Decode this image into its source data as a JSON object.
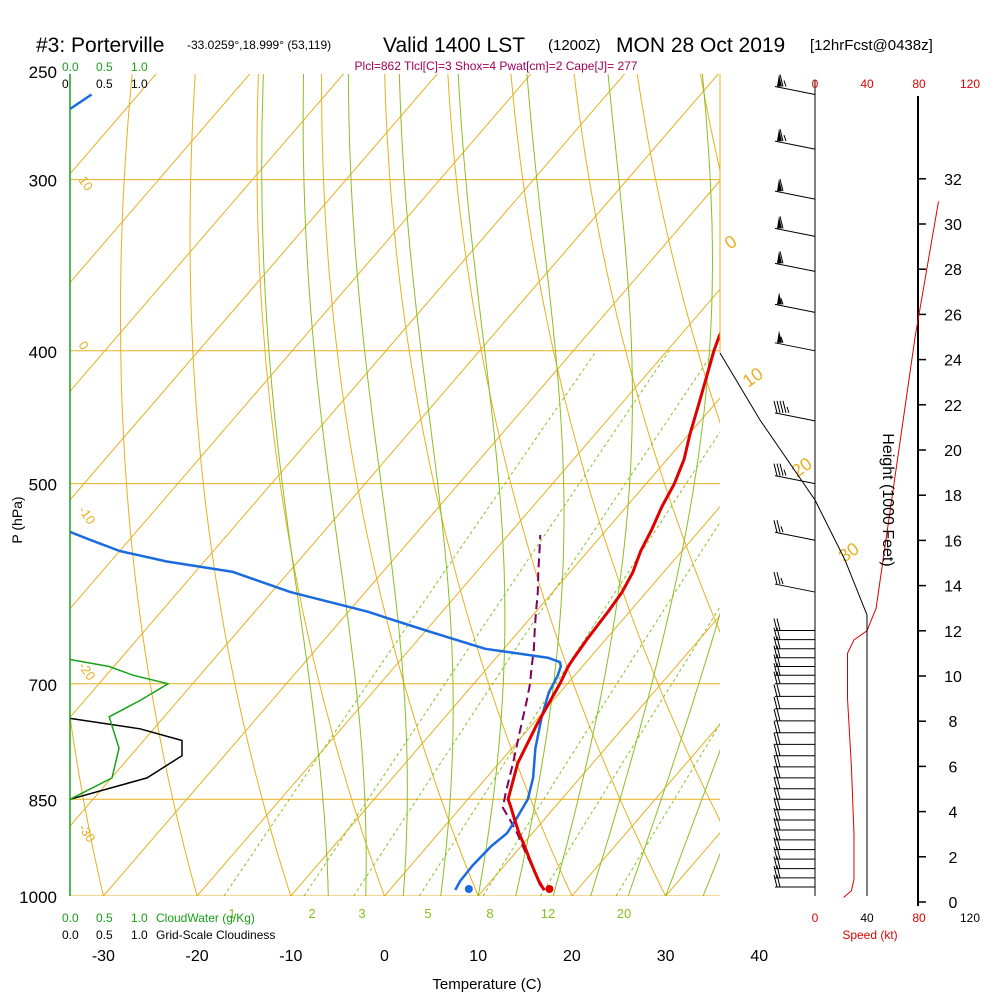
{
  "header": {
    "station": "#3: Porterville",
    "coords": "-33.0259°,18.999° (53,119)",
    "valid": "Valid 1400 LST",
    "zulu": "(1200Z)",
    "date": "MON 28 Oct 2019",
    "forecast": "[12hrFcst@0438z]",
    "indices": "Plcl=862 Tlcl[C]=3 Shox=4 Pwat[cm]=2 Cape[J]= 277"
  },
  "colors": {
    "isotherm": "#e8b020",
    "dry_adiabat": "#e8b020",
    "moist_adiabat": "#88c020",
    "mixing_ratio": "#88c020",
    "temperature": "#e00000",
    "dewpoint": "#1a6ae0",
    "parcel": "#800060",
    "cloudwater": "#18a018",
    "cloudiness": "#000000",
    "wind_speed": "#e00000"
  },
  "chart_data": {
    "type": "line",
    "title": "",
    "xlabel": "Temperature (C)",
    "ylabel": "P (hPa)",
    "y_scale": "log",
    "xlim": [
      -35,
      36
    ],
    "ylim": [
      1000,
      250
    ],
    "x_ticks": [
      -30,
      -20,
      -10,
      0,
      10,
      20,
      30,
      40
    ],
    "p_ticks": [
      250,
      300,
      400,
      500,
      700,
      850,
      1000
    ],
    "isotherms_every": 10,
    "dry_adiabat_labels": [
      "10",
      "0",
      "-10",
      "-20",
      "-30"
    ],
    "moist_adiabat_labels": [
      "0",
      "10",
      "20",
      "30"
    ],
    "mixing_ratio_labels": [
      "1",
      "2",
      "3",
      "5",
      "8",
      "12",
      "20"
    ],
    "series": [
      {
        "key": "temperature",
        "p": [
          990,
          980,
          960,
          940,
          920,
          900,
          880,
          860,
          850,
          800,
          750,
          700,
          680,
          670,
          650,
          620,
          600,
          580,
          560,
          540,
          520,
          500,
          480,
          460,
          440,
          420,
          400,
          390,
          380,
          370,
          360,
          350,
          340,
          330,
          320,
          310,
          300,
          290,
          280,
          270,
          260
        ],
        "x": [
          16.5,
          15.5,
          13.8,
          12.1,
          10.4,
          8.6,
          6.9,
          5.2,
          4.3,
          2.0,
          0.5,
          -0.8,
          -1.5,
          -1.7,
          -2.0,
          -2.3,
          -2.6,
          -3.3,
          -4.4,
          -5.2,
          -6.2,
          -7.0,
          -8.2,
          -9.9,
          -11.5,
          -13.2,
          -15.0,
          -15.8,
          -16.4,
          -16.9,
          -17.6,
          -18.6,
          -19.8,
          -21.0,
          -22.3,
          -23.6,
          -25.0,
          -26.6,
          -28.3,
          -30.0,
          -31.5
        ]
      },
      {
        "key": "dewpoint",
        "p": [
          990,
          975,
          950,
          920,
          900,
          880,
          860,
          850,
          820,
          780,
          740,
          710,
          700,
          690,
          680,
          675,
          670,
          660,
          640,
          620,
          600,
          580,
          570,
          560,
          550,
          540,
          520,
          500,
          460,
          420,
          380,
          360,
          340,
          320,
          300,
          290,
          280,
          270,
          260
        ],
        "x": [
          7.0,
          6.7,
          6.6,
          6.8,
          7.3,
          7.0,
          6.6,
          6.4,
          5.0,
          2.5,
          0.3,
          -1.2,
          -1.5,
          -1.8,
          -2.3,
          -2.8,
          -4.5,
          -12.0,
          -20.0,
          -28.0,
          -38.0,
          -46.0,
          -54.0,
          -60.0,
          -64.0,
          -68.0,
          -76.0,
          -84.0,
          -98.0,
          -110.0,
          -120.0,
          -122.0,
          -122.5,
          -121.0,
          -115.0,
          -112.0,
          -107.0,
          -106.5,
          -105.0
        ]
      },
      {
        "key": "parcel",
        "p": [
          990,
          960,
          930,
          900,
          880,
          862,
          840,
          800,
          760,
          720,
          700,
          680,
          660,
          640,
          620,
          600,
          580,
          560,
          545
        ],
        "x": [
          16.5,
          13.8,
          11.1,
          8.4,
          6.4,
          4.5,
          3.4,
          1.5,
          -0.6,
          -2.8,
          -4.0,
          -5.4,
          -6.8,
          -8.4,
          -10.0,
          -11.6,
          -13.4,
          -15.2,
          -16.6
        ]
      }
    ],
    "surface_markers": {
      "temperature": {
        "p": 1000,
        "x": 17.6
      },
      "dewpoint": {
        "p": 1000,
        "x": 9.0
      }
    },
    "cloud_panel": {
      "label_cloudwater": "CloudWater (g/Kg)",
      "label_cloudiness": "Grid-Scale Cloudiness",
      "ticks": [
        "0.0",
        "0.5",
        "1.0"
      ],
      "ticks_short": [
        "0",
        "0.5",
        "1.0"
      ],
      "cloudwater": {
        "p": [
          850,
          820,
          780,
          740,
          720,
          700,
          690,
          680,
          672
        ],
        "x": [
          0.0,
          0.3,
          0.35,
          0.28,
          0.5,
          0.7,
          0.45,
          0.28,
          0.0
        ]
      },
      "cloudiness": {
        "p": [
          850,
          820,
          790,
          770,
          755,
          742
        ],
        "x": [
          0.0,
          0.55,
          0.8,
          0.8,
          0.5,
          0.0
        ]
      }
    },
    "wind_panel": {
      "speed_ticks": [
        "0",
        "40",
        "80",
        "120"
      ],
      "speed_label": "Speed (kt)",
      "height_label": "Height (1000 Feet)",
      "height_ticks": [
        0,
        2,
        4,
        6,
        8,
        10,
        12,
        14,
        16,
        18,
        20,
        22,
        24,
        26,
        28,
        30,
        32
      ],
      "speed_profile": {
        "height_kft": [
          0.2,
          0.5,
          1.0,
          3.0,
          6.0,
          9.0,
          11.0,
          11.6,
          12.0,
          13.0,
          15.0,
          17.0,
          19.0,
          21.0,
          23.0,
          25.0,
          27.0,
          29.0,
          31.0
        ],
        "speed_kt": [
          22,
          28,
          30,
          30,
          28,
          25,
          25,
          30,
          40,
          47,
          52,
          57,
          62,
          67,
          72,
          77,
          83,
          89,
          95
        ]
      },
      "barbs": [
        {
          "p": 260,
          "speed": 65
        },
        {
          "p": 285,
          "speed": 65
        },
        {
          "p": 310,
          "speed": 60
        },
        {
          "p": 330,
          "speed": 60
        },
        {
          "p": 350,
          "speed": 60
        },
        {
          "p": 375,
          "speed": 55
        },
        {
          "p": 400,
          "speed": 55
        },
        {
          "p": 450,
          "speed": 45
        },
        {
          "p": 500,
          "speed": 35
        },
        {
          "p": 550,
          "speed": 25
        },
        {
          "p": 600,
          "speed": 25
        },
        {
          "p": 640,
          "speed": 20
        },
        {
          "p": 650,
          "speed": 20
        },
        {
          "p": 660,
          "speed": 20
        },
        {
          "p": 670,
          "speed": 20
        },
        {
          "p": 680,
          "speed": 20
        },
        {
          "p": 690,
          "speed": 20
        },
        {
          "p": 700,
          "speed": 20
        },
        {
          "p": 715,
          "speed": 20
        },
        {
          "p": 730,
          "speed": 20
        },
        {
          "p": 745,
          "speed": 20
        },
        {
          "p": 760,
          "speed": 20
        },
        {
          "p": 775,
          "speed": 20
        },
        {
          "p": 790,
          "speed": 20
        },
        {
          "p": 805,
          "speed": 20
        },
        {
          "p": 820,
          "speed": 20
        },
        {
          "p": 835,
          "speed": 20
        },
        {
          "p": 850,
          "speed": 20
        },
        {
          "p": 865,
          "speed": 20
        },
        {
          "p": 880,
          "speed": 20
        },
        {
          "p": 895,
          "speed": 20
        },
        {
          "p": 910,
          "speed": 20
        },
        {
          "p": 925,
          "speed": 20
        },
        {
          "p": 940,
          "speed": 20
        },
        {
          "p": 955,
          "speed": 20
        },
        {
          "p": 970,
          "speed": 20
        },
        {
          "p": 985,
          "speed": 20
        }
      ]
    }
  }
}
